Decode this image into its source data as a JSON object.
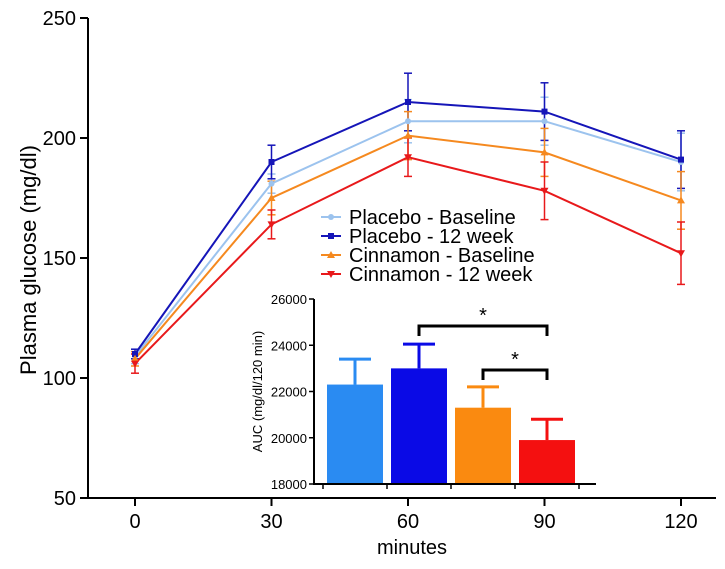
{
  "chart_data": [
    {
      "type": "line",
      "xlabel": "minutes",
      "ylabel": "Plasma glucose (mg/dl)",
      "xlim": [
        0,
        120
      ],
      "ylim": [
        50,
        250
      ],
      "x_ticks": [
        0,
        30,
        60,
        90,
        120
      ],
      "y_ticks": [
        50,
        100,
        150,
        200,
        250
      ],
      "grid": false,
      "legend_position": "center-right",
      "x": [
        0,
        30,
        60,
        90,
        120
      ],
      "series": [
        {
          "name": "Placebo - Baseline",
          "color": "#9CC3EE",
          "marker": "circle",
          "values": [
            109,
            181,
            207,
            207,
            190
          ],
          "error": [
            3,
            4,
            9,
            10,
            12
          ]
        },
        {
          "name": "Placebo - 12 week",
          "color": "#1515B8",
          "marker": "square",
          "values": [
            110,
            190,
            215,
            211,
            191
          ],
          "error": [
            2,
            7,
            12,
            12,
            12
          ]
        },
        {
          "name": "Cinnamon - Baseline",
          "color": "#F5891F",
          "marker": "triangle-up",
          "values": [
            108,
            175,
            201,
            194,
            174
          ],
          "error": [
            3,
            7,
            10,
            10,
            12
          ]
        },
        {
          "name": "Cinnamon - 12 week",
          "color": "#E8191B",
          "marker": "triangle-down",
          "values": [
            106,
            164,
            192,
            178,
            152
          ],
          "error": [
            4,
            6,
            8,
            12,
            13
          ]
        }
      ]
    },
    {
      "type": "bar",
      "ylabel": "AUC (mg/dl/120 min)",
      "ylim": [
        18000,
        26000
      ],
      "y_ticks": [
        18000,
        20000,
        22000,
        24000,
        26000
      ],
      "categories": [
        "Placebo - Baseline",
        "Placebo - 12 week",
        "Cinnamon - Baseline",
        "Cinnamon - 12 week"
      ],
      "values": [
        22300,
        23000,
        21300,
        19900
      ],
      "error": [
        1100,
        1050,
        900,
        900
      ],
      "colors": [
        "#2A8BF2",
        "#0A0AE6",
        "#FA8A10",
        "#F41010"
      ],
      "annotations": [
        {
          "text": "*",
          "between": [
            "Placebo - 12 week",
            "Cinnamon - 12 week"
          ]
        },
        {
          "text": "*",
          "between": [
            "Cinnamon - Baseline",
            "Cinnamon - 12 week"
          ]
        }
      ]
    }
  ]
}
